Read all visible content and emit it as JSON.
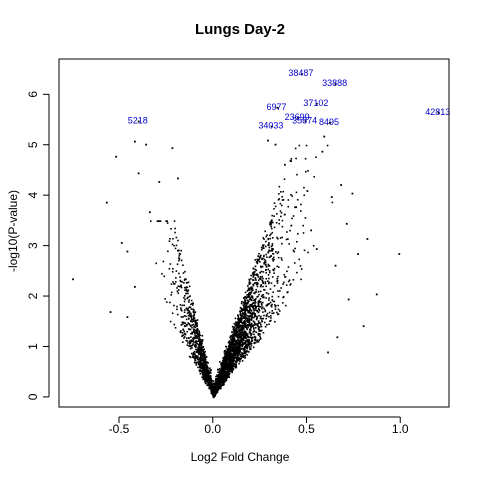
{
  "chart_data": {
    "type": "scatter",
    "title": "Lungs Day-2",
    "xlabel": "Log2 Fold Change",
    "ylabel": "-log10(P-value)",
    "xlim": [
      -0.82,
      1.26
    ],
    "ylim": [
      -0.2,
      6.7
    ],
    "x_ticks": [
      -0.5,
      0.0,
      0.5,
      1.0
    ],
    "x_tick_labels": [
      "-0.5",
      "0.0",
      "0.5",
      "1.0"
    ],
    "y_ticks": [
      0,
      1,
      2,
      3,
      4,
      5,
      6
    ],
    "y_tick_labels": [
      "0",
      "1",
      "2",
      "3",
      "4",
      "5",
      "6"
    ],
    "grid": false,
    "point_color": "#000000",
    "label_color": "#0000cc",
    "labeled_points": [
      {
        "label": "38487",
        "x": 0.47,
        "y": 6.42
      },
      {
        "label": "33888",
        "x": 0.65,
        "y": 6.22
      },
      {
        "label": "42813",
        "x": 1.2,
        "y": 5.65
      },
      {
        "label": "37102",
        "x": 0.55,
        "y": 5.83
      },
      {
        "label": "6977",
        "x": 0.34,
        "y": 5.75
      },
      {
        "label": "5218",
        "x": -0.4,
        "y": 5.48
      },
      {
        "label": "23699",
        "x": 0.45,
        "y": 5.55
      },
      {
        "label": "35874",
        "x": 0.49,
        "y": 5.48
      },
      {
        "label": "8495",
        "x": 0.62,
        "y": 5.45
      },
      {
        "label": "34033",
        "x": 0.31,
        "y": 5.38
      }
    ],
    "outlier_points": [
      {
        "x": -0.75,
        "y": 2.35
      },
      {
        "x": -0.57,
        "y": 3.87
      },
      {
        "x": -0.52,
        "y": 4.78
      },
      {
        "x": -0.49,
        "y": 3.07
      },
      {
        "x": -0.42,
        "y": 5.08
      },
      {
        "x": -0.4,
        "y": 4.45
      },
      {
        "x": -0.36,
        "y": 5.02
      },
      {
        "x": -0.34,
        "y": 3.68
      },
      {
        "x": -0.29,
        "y": 4.28
      },
      {
        "x": -0.22,
        "y": 4.95
      },
      {
        "x": -0.19,
        "y": 4.35
      },
      {
        "x": -0.46,
        "y": 1.6
      },
      {
        "x": -0.55,
        "y": 1.7
      },
      {
        "x": -0.42,
        "y": 2.2
      },
      {
        "x": -0.46,
        "y": 2.9
      },
      {
        "x": 0.29,
        "y": 5.1
      },
      {
        "x": 0.33,
        "y": 5.02
      },
      {
        "x": 0.38,
        "y": 4.62
      },
      {
        "x": 0.41,
        "y": 4.7
      },
      {
        "x": 0.44,
        "y": 3.78
      },
      {
        "x": 0.5,
        "y": 4.1
      },
      {
        "x": 0.52,
        "y": 3.32
      },
      {
        "x": 0.55,
        "y": 2.95
      },
      {
        "x": 0.58,
        "y": 4.88
      },
      {
        "x": 0.59,
        "y": 5.18
      },
      {
        "x": 0.63,
        "y": 3.98
      },
      {
        "x": 0.65,
        "y": 2.62
      },
      {
        "x": 0.68,
        "y": 4.22
      },
      {
        "x": 0.71,
        "y": 3.45
      },
      {
        "x": 0.74,
        "y": 4.05
      },
      {
        "x": 0.77,
        "y": 2.85
      },
      {
        "x": 0.8,
        "y": 1.42
      },
      {
        "x": 0.82,
        "y": 3.15
      },
      {
        "x": 0.87,
        "y": 2.05
      },
      {
        "x": 0.99,
        "y": 2.85
      },
      {
        "x": 0.72,
        "y": 1.95
      },
      {
        "x": 0.66,
        "y": 1.2
      },
      {
        "x": 0.61,
        "y": 0.9
      }
    ]
  }
}
